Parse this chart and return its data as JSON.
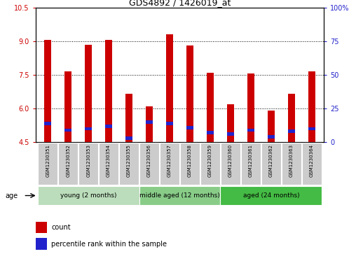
{
  "title": "GDS4892 / 1426019_at",
  "samples": [
    "GSM1230351",
    "GSM1230352",
    "GSM1230353",
    "GSM1230354",
    "GSM1230355",
    "GSM1230356",
    "GSM1230357",
    "GSM1230358",
    "GSM1230359",
    "GSM1230360",
    "GSM1230361",
    "GSM1230362",
    "GSM1230363",
    "GSM1230364"
  ],
  "count_values": [
    9.05,
    7.65,
    8.85,
    9.05,
    6.65,
    6.1,
    9.3,
    8.8,
    7.6,
    6.2,
    7.55,
    5.9,
    6.65,
    7.65
  ],
  "percentile_values": [
    14,
    9,
    10,
    12,
    3,
    15,
    14,
    11,
    7,
    6,
    9,
    4,
    8,
    10
  ],
  "ymin": 4.5,
  "ymax": 10.5,
  "yticks": [
    4.5,
    6.0,
    7.5,
    9.0,
    10.5
  ],
  "right_yticks": [
    0,
    25,
    50,
    75,
    100
  ],
  "bar_color": "#cc0000",
  "blue_color": "#2222cc",
  "groups": [
    {
      "label": "young (2 months)",
      "start": 0,
      "end": 5,
      "color": "#bbddbb"
    },
    {
      "label": "middle aged (12 months)",
      "start": 5,
      "end": 9,
      "color": "#88cc88"
    },
    {
      "label": "aged (24 months)",
      "start": 9,
      "end": 14,
      "color": "#44bb44"
    }
  ],
  "age_label": "age",
  "legend_count": "count",
  "legend_percentile": "percentile rank within the sample",
  "bar_width": 0.35,
  "base_value": 4.5
}
